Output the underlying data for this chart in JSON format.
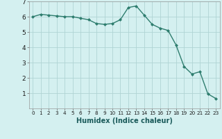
{
  "x": [
    0,
    1,
    2,
    3,
    4,
    5,
    6,
    7,
    8,
    9,
    10,
    11,
    12,
    13,
    14,
    15,
    16,
    17,
    18,
    19,
    20,
    21,
    22,
    23
  ],
  "y": [
    6.0,
    6.15,
    6.1,
    6.05,
    6.0,
    6.0,
    5.9,
    5.8,
    5.55,
    5.5,
    5.55,
    5.8,
    6.6,
    6.7,
    6.1,
    5.5,
    5.25,
    5.1,
    4.15,
    2.75,
    2.25,
    2.4,
    0.95,
    0.65
  ],
  "line_color": "#2e7d6e",
  "marker": "D",
  "marker_size": 2.0,
  "linewidth": 1.0,
  "xlabel": "Humidex (Indice chaleur)",
  "xlabel_fontsize": 7,
  "xlabel_fontweight": "bold",
  "background_color": "#d4f0f0",
  "grid_color": "#b0d4d4",
  "tick_label_fontsize": 6.5,
  "ylim": [
    0,
    7
  ],
  "xlim": [
    -0.5,
    23.5
  ],
  "yticks": [
    1,
    2,
    3,
    4,
    5,
    6,
    7
  ],
  "xticks": [
    0,
    1,
    2,
    3,
    4,
    5,
    6,
    7,
    8,
    9,
    10,
    11,
    12,
    13,
    14,
    15,
    16,
    17,
    18,
    19,
    20,
    21,
    22,
    23
  ]
}
